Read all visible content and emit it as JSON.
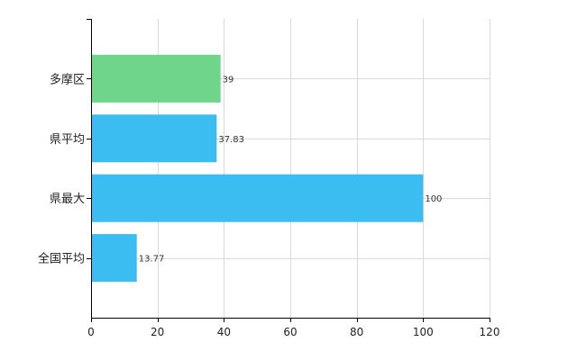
{
  "chart_data": {
    "type": "bar",
    "orientation": "horizontal",
    "categories": [
      "多摩区",
      "県平均",
      "県最大",
      "全国平均"
    ],
    "values": [
      39,
      37.83,
      100,
      13.77
    ],
    "data_labels": [
      "39",
      "37.83",
      "100",
      "13.77"
    ],
    "bar_colors": [
      "#6fd58a",
      "#3cbdf2",
      "#3cbdf2",
      "#3cbdf2"
    ],
    "xlim": [
      0,
      120
    ],
    "xticks": [
      0,
      20,
      40,
      60,
      80,
      100,
      120
    ],
    "xtick_labels": [
      "0",
      "20",
      "40",
      "60",
      "80",
      "100",
      "120"
    ],
    "grid": true,
    "legend": "none"
  }
}
